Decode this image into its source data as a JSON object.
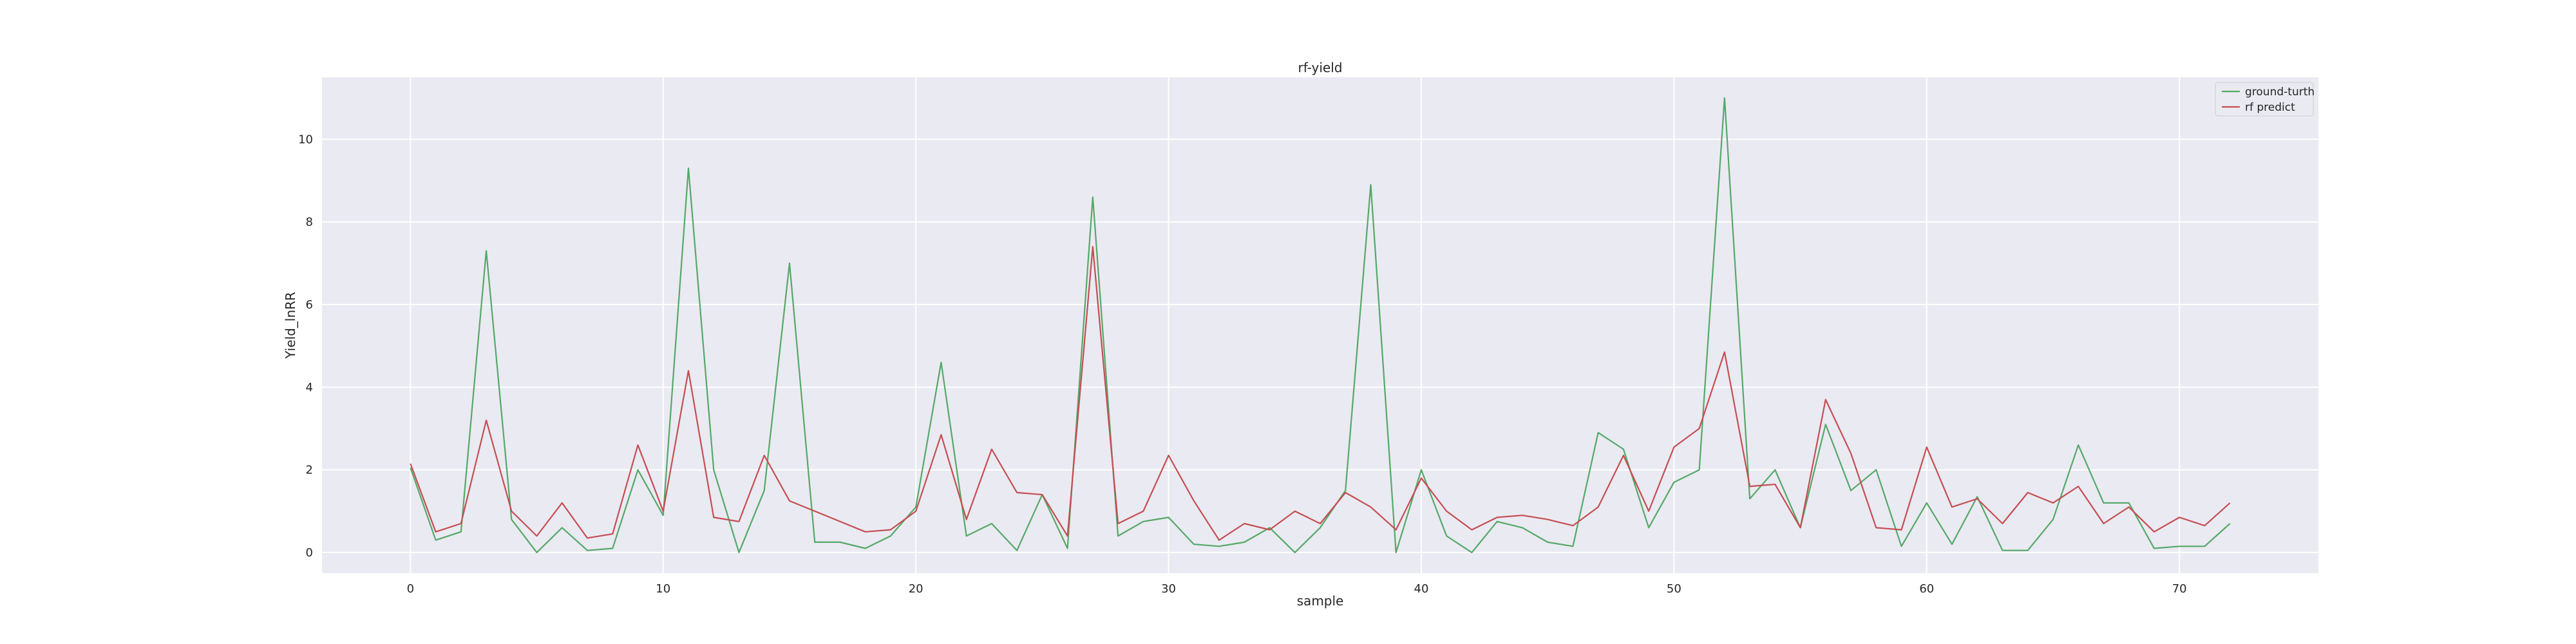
{
  "chart_data": {
    "type": "line",
    "title": "rf-yield",
    "xlabel": "sample",
    "ylabel": "Yield_lnRR",
    "xlim": [
      -3.5,
      75.5
    ],
    "ylim": [
      -0.5,
      11.5
    ],
    "xticks": [
      0,
      10,
      20,
      30,
      40,
      50,
      60,
      70
    ],
    "yticks": [
      0,
      2,
      4,
      6,
      8,
      10
    ],
    "grid": true,
    "background": "#EAEAF2",
    "legend_position": "top-right",
    "series": [
      {
        "name": "ground-turth",
        "color": "#55A868",
        "values": [
          2.05,
          0.3,
          0.5,
          7.3,
          0.8,
          0.0,
          0.6,
          0.05,
          0.1,
          2.0,
          0.9,
          9.3,
          2.0,
          0.0,
          1.5,
          7.0,
          0.25,
          0.25,
          0.1,
          0.4,
          1.1,
          4.6,
          0.4,
          0.7,
          0.05,
          1.4,
          0.1,
          8.6,
          0.4,
          0.75,
          0.85,
          0.2,
          0.15,
          0.25,
          0.6,
          0.0,
          0.6,
          1.5,
          8.9,
          0.0,
          2.0,
          0.4,
          0.0,
          0.75,
          0.6,
          0.25,
          0.15,
          2.9,
          2.5,
          0.6,
          1.7,
          2.0,
          11.0,
          1.3,
          2.0,
          0.6,
          3.1,
          1.5,
          2.0,
          0.15,
          1.2,
          0.2,
          1.35,
          0.05,
          0.05,
          0.8,
          2.6,
          1.2,
          1.2,
          0.1,
          0.15,
          0.15,
          0.7
        ]
      },
      {
        "name": "rf predict",
        "color": "#C44E52",
        "values": [
          2.15,
          0.5,
          0.7,
          3.2,
          1.0,
          0.4,
          1.2,
          0.35,
          0.45,
          2.6,
          1.0,
          4.4,
          0.85,
          0.75,
          2.35,
          1.25,
          1.0,
          0.75,
          0.5,
          0.55,
          1.0,
          2.85,
          0.8,
          2.5,
          1.45,
          1.4,
          0.4,
          7.4,
          0.7,
          1.0,
          2.35,
          1.25,
          0.3,
          0.7,
          0.55,
          1.0,
          0.7,
          1.45,
          1.1,
          0.55,
          1.8,
          1.0,
          0.55,
          0.85,
          0.9,
          0.8,
          0.65,
          1.1,
          2.35,
          1.0,
          2.55,
          3.0,
          4.85,
          1.6,
          1.65,
          0.6,
          3.7,
          2.4,
          0.6,
          0.55,
          2.55,
          1.1,
          1.3,
          0.7,
          1.45,
          1.2,
          1.6,
          0.7,
          1.1,
          0.5,
          0.85,
          0.65,
          1.2
        ]
      }
    ]
  }
}
